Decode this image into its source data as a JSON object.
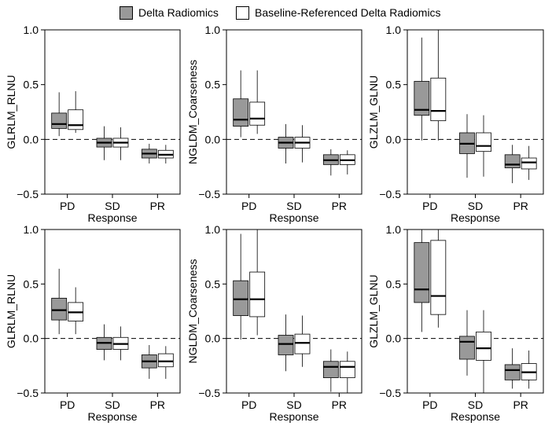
{
  "legend": {
    "items": [
      {
        "label": "Delta Radiomics",
        "color": "#999999"
      },
      {
        "label": "Baseline-Referenced Delta Radiomics",
        "color": "#ffffff"
      }
    ]
  },
  "colors": {
    "series1": "#999999",
    "series2": "#ffffff",
    "median": "#000000",
    "whisker": "#000000",
    "reference": "#000000"
  },
  "chart_data": [
    {
      "type": "box",
      "ylabel": "GLRLM_RLNU",
      "xlabel": "Response",
      "categories": [
        "PD",
        "SD",
        "PR"
      ],
      "ylim": [
        -0.5,
        1.0
      ],
      "yticks": [
        -0.5,
        0.0,
        0.5,
        1.0
      ],
      "reference_line": 0.0,
      "series": [
        {
          "name": "Delta Radiomics",
          "boxes": [
            {
              "min": 0.03,
              "q1": 0.1,
              "median": 0.14,
              "q3": 0.24,
              "max": 0.43
            },
            {
              "min": -0.19,
              "q1": -0.07,
              "median": -0.03,
              "q3": 0.01,
              "max": 0.12
            },
            {
              "min": -0.22,
              "q1": -0.17,
              "median": -0.13,
              "q3": -0.09,
              "max": -0.04
            }
          ]
        },
        {
          "name": "Baseline-Referenced Delta Radiomics",
          "boxes": [
            {
              "min": 0.06,
              "q1": 0.09,
              "median": 0.13,
              "q3": 0.27,
              "max": 0.44
            },
            {
              "min": -0.19,
              "q1": -0.07,
              "median": -0.03,
              "q3": 0.01,
              "max": 0.11
            },
            {
              "min": -0.22,
              "q1": -0.17,
              "median": -0.14,
              "q3": -0.1,
              "max": -0.05
            }
          ]
        }
      ]
    },
    {
      "type": "box",
      "ylabel": "NGLDM_Coarseness",
      "xlabel": "Response",
      "categories": [
        "PD",
        "SD",
        "PR"
      ],
      "ylim": [
        -0.5,
        1.0
      ],
      "yticks": [
        -0.5,
        0.0,
        0.5,
        1.0
      ],
      "reference_line": 0.0,
      "series": [
        {
          "name": "Delta Radiomics",
          "boxes": [
            {
              "min": 0.02,
              "q1": 0.12,
              "median": 0.18,
              "q3": 0.37,
              "max": 0.63
            },
            {
              "min": -0.22,
              "q1": -0.08,
              "median": -0.03,
              "q3": 0.02,
              "max": 0.14
            },
            {
              "min": -0.33,
              "q1": -0.23,
              "median": -0.19,
              "q3": -0.14,
              "max": -0.09
            }
          ]
        },
        {
          "name": "Baseline-Referenced Delta Radiomics",
          "boxes": [
            {
              "min": 0.05,
              "q1": 0.13,
              "median": 0.19,
              "q3": 0.34,
              "max": 0.63
            },
            {
              "min": -0.21,
              "q1": -0.08,
              "median": -0.03,
              "q3": 0.02,
              "max": 0.13
            },
            {
              "min": -0.32,
              "q1": -0.23,
              "median": -0.19,
              "q3": -0.14,
              "max": -0.1
            }
          ]
        }
      ]
    },
    {
      "type": "box",
      "ylabel": "GLZLM_GLNU",
      "xlabel": "Response",
      "categories": [
        "PD",
        "SD",
        "PR"
      ],
      "ylim": [
        -0.5,
        1.0
      ],
      "yticks": [
        -0.5,
        0.0,
        0.5,
        1.0
      ],
      "reference_line": 0.0,
      "series": [
        {
          "name": "Delta Radiomics",
          "boxes": [
            {
              "min": -0.01,
              "q1": 0.22,
              "median": 0.27,
              "q3": 0.53,
              "max": 0.93
            },
            {
              "min": -0.35,
              "q1": -0.13,
              "median": -0.04,
              "q3": 0.06,
              "max": 0.23
            },
            {
              "min": -0.4,
              "q1": -0.26,
              "median": -0.23,
              "q3": -0.14,
              "max": -0.05
            }
          ]
        },
        {
          "name": "Baseline-Referenced Delta Radiomics",
          "boxes": [
            {
              "min": -0.01,
              "q1": 0.17,
              "median": 0.26,
              "q3": 0.56,
              "max": 1.0
            },
            {
              "min": -0.34,
              "q1": -0.11,
              "median": -0.06,
              "q3": 0.06,
              "max": 0.22
            },
            {
              "min": -0.37,
              "q1": -0.27,
              "median": -0.21,
              "q3": -0.17,
              "max": -0.06
            }
          ]
        }
      ]
    },
    {
      "type": "box",
      "ylabel": "GLRLM_RLNU",
      "xlabel": "Response",
      "categories": [
        "PD",
        "SD",
        "PR"
      ],
      "ylim": [
        -0.5,
        1.0
      ],
      "yticks": [
        -0.5,
        0.0,
        0.5,
        1.0
      ],
      "reference_line": 0.0,
      "series": [
        {
          "name": "Delta Radiomics",
          "boxes": [
            {
              "min": 0.04,
              "q1": 0.17,
              "median": 0.26,
              "q3": 0.37,
              "max": 0.64
            },
            {
              "min": -0.2,
              "q1": -0.1,
              "median": -0.04,
              "q3": 0.01,
              "max": 0.13
            },
            {
              "min": -0.37,
              "q1": -0.27,
              "median": -0.21,
              "q3": -0.15,
              "max": -0.06
            }
          ]
        },
        {
          "name": "Baseline-Referenced Delta Radiomics",
          "boxes": [
            {
              "min": 0.04,
              "q1": 0.16,
              "median": 0.24,
              "q3": 0.33,
              "max": 0.47
            },
            {
              "min": -0.2,
              "q1": -0.1,
              "median": -0.05,
              "q3": 0.01,
              "max": 0.11
            },
            {
              "min": -0.37,
              "q1": -0.26,
              "median": -0.21,
              "q3": -0.14,
              "max": -0.07
            }
          ]
        }
      ]
    },
    {
      "type": "box",
      "ylabel": "NGLDM_Coarseness",
      "xlabel": "Response",
      "categories": [
        "PD",
        "SD",
        "PR"
      ],
      "ylim": [
        -0.5,
        1.0
      ],
      "yticks": [
        -0.5,
        0.0,
        0.5,
        1.0
      ],
      "reference_line": 0.0,
      "series": [
        {
          "name": "Delta Radiomics",
          "boxes": [
            {
              "min": -0.01,
              "q1": 0.21,
              "median": 0.36,
              "q3": 0.53,
              "max": 0.96
            },
            {
              "min": -0.3,
              "q1": -0.15,
              "median": -0.05,
              "q3": 0.03,
              "max": 0.22
            },
            {
              "min": -0.49,
              "q1": -0.36,
              "median": -0.26,
              "q3": -0.21,
              "max": -0.1
            }
          ]
        },
        {
          "name": "Baseline-Referenced Delta Radiomics",
          "boxes": [
            {
              "min": 0.03,
              "q1": 0.2,
              "median": 0.36,
              "q3": 0.61,
              "max": 1.0
            },
            {
              "min": -0.26,
              "q1": -0.14,
              "median": -0.04,
              "q3": 0.04,
              "max": 0.21
            },
            {
              "min": -0.5,
              "q1": -0.36,
              "median": -0.26,
              "q3": -0.21,
              "max": -0.12
            }
          ]
        }
      ]
    },
    {
      "type": "box",
      "ylabel": "GLZLM_GLNU",
      "xlabel": "Response",
      "categories": [
        "PD",
        "SD",
        "PR"
      ],
      "ylim": [
        -0.5,
        1.0
      ],
      "yticks": [
        -0.5,
        0.0,
        0.5,
        1.0
      ],
      "reference_line": 0.0,
      "series": [
        {
          "name": "Delta Radiomics",
          "boxes": [
            {
              "min": 0.06,
              "q1": 0.33,
              "median": 0.45,
              "q3": 0.88,
              "max": 1.0
            },
            {
              "min": -0.34,
              "q1": -0.19,
              "median": -0.03,
              "q3": 0.02,
              "max": 0.26
            },
            {
              "min": -0.46,
              "q1": -0.38,
              "median": -0.29,
              "q3": -0.24,
              "max": -0.09
            }
          ]
        },
        {
          "name": "Baseline-Referenced Delta Radiomics",
          "boxes": [
            {
              "min": 0.1,
              "q1": 0.22,
              "median": 0.39,
              "q3": 0.9,
              "max": 1.0
            },
            {
              "min": -0.5,
              "q1": -0.2,
              "median": -0.09,
              "q3": 0.06,
              "max": 0.26
            },
            {
              "min": -0.46,
              "q1": -0.38,
              "median": -0.31,
              "q3": -0.23,
              "max": -0.11
            }
          ]
        }
      ]
    }
  ]
}
